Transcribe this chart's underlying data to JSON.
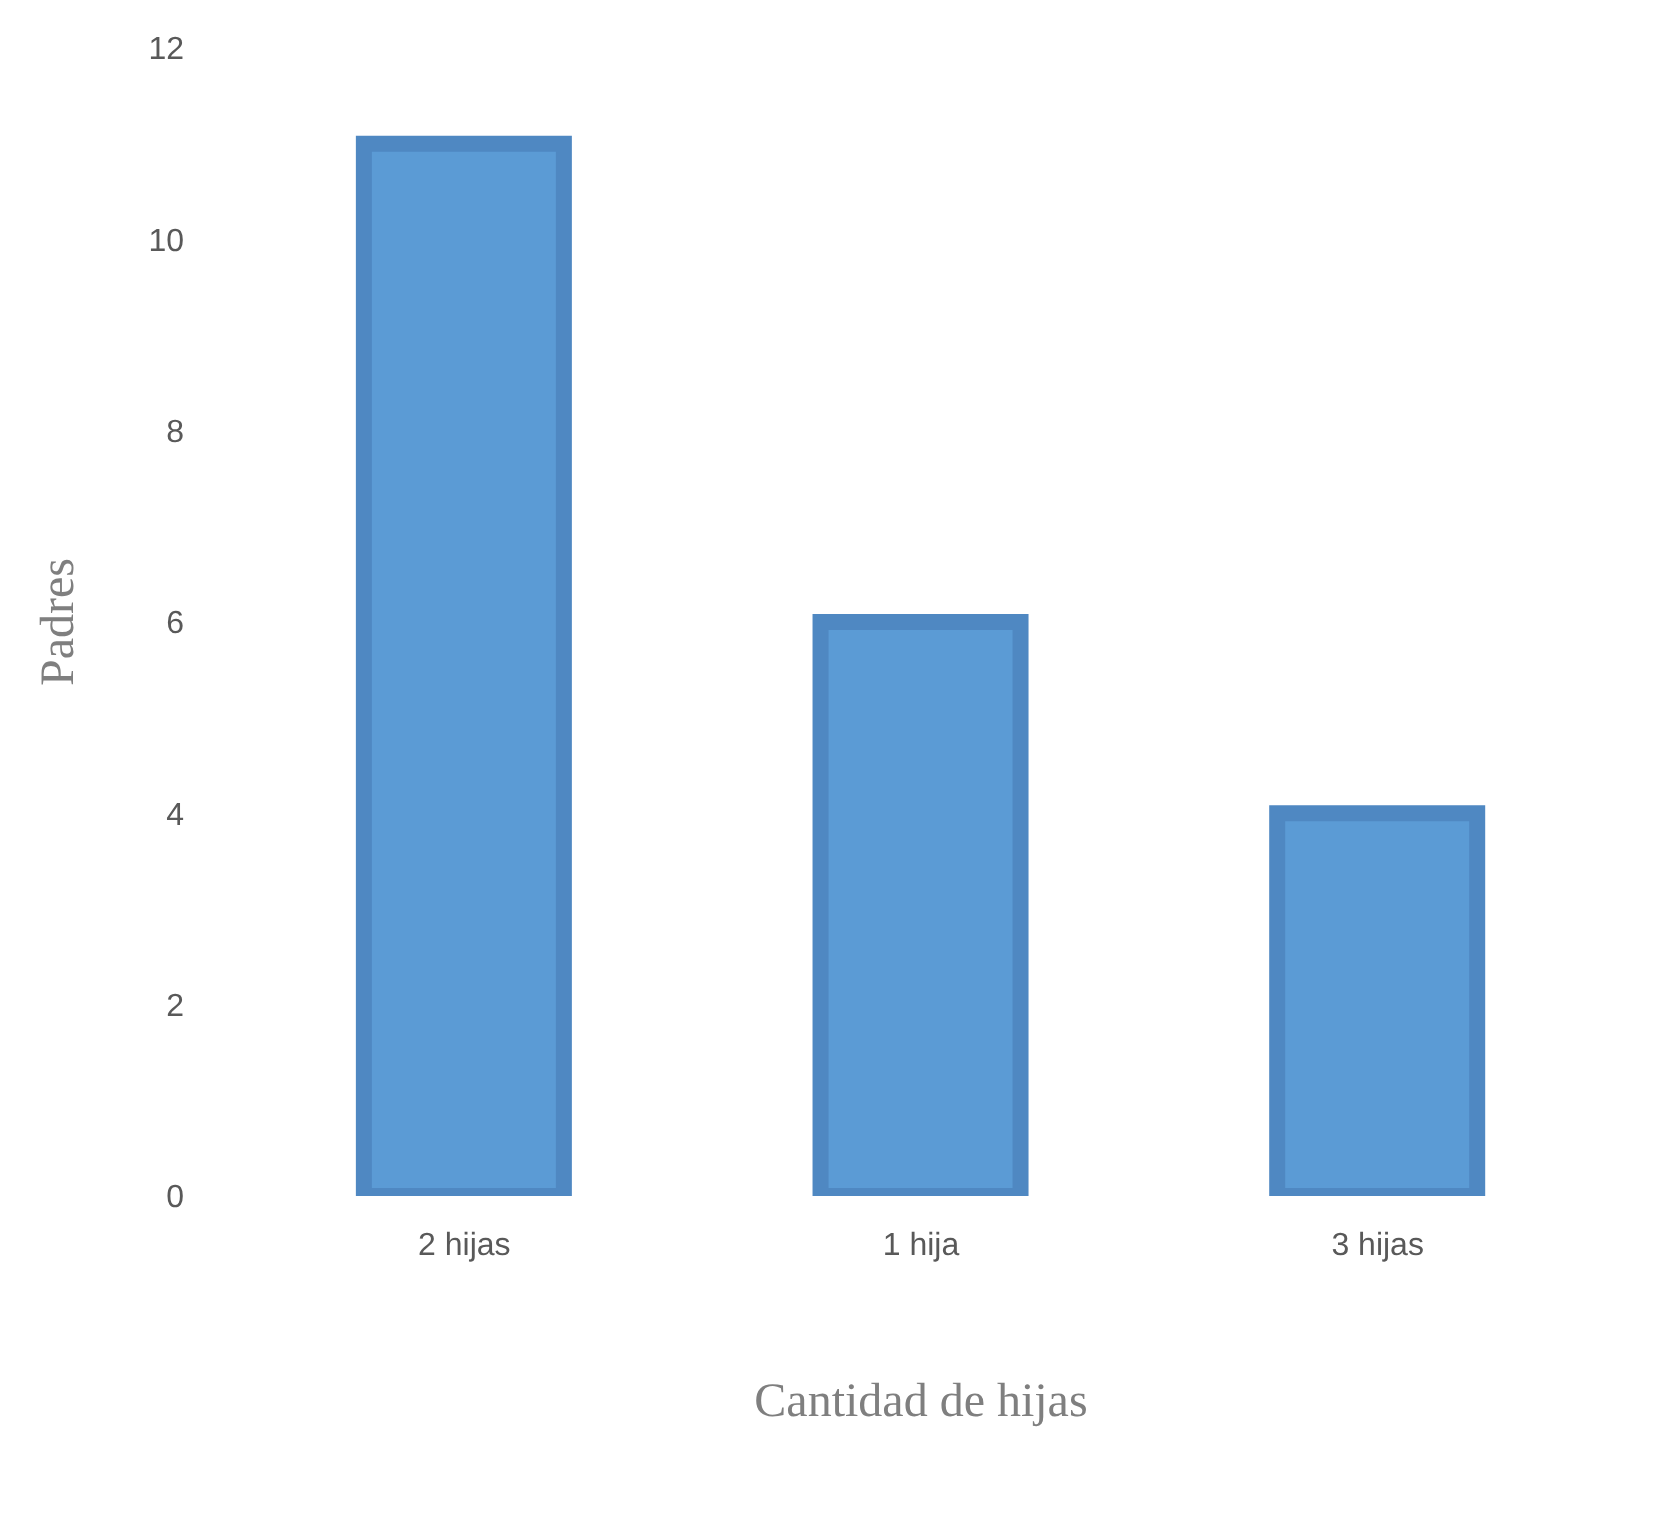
{
  "chart_data": {
    "type": "bar",
    "xlabel": "Cantidad de hijas",
    "ylabel": "Padres",
    "categories": [
      "2 hijas",
      "1 hija",
      "3 hijas"
    ],
    "values": [
      11,
      6,
      4
    ],
    "color": "#5b9bd5",
    "ylim": [
      0,
      12
    ],
    "yticks": [
      0,
      2,
      4,
      6,
      8,
      10,
      12
    ],
    "grid": false,
    "legend": false
  }
}
